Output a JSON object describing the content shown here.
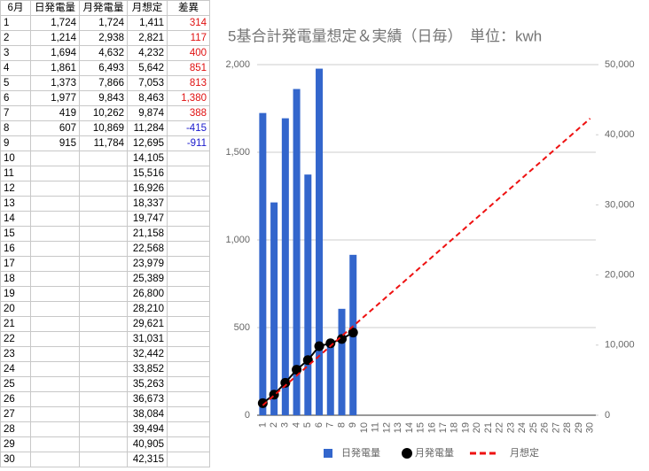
{
  "table": {
    "header": [
      "6月",
      "日発電量",
      "月発電量",
      "月想定",
      "差異"
    ],
    "rows": [
      [
        "1",
        "1,724",
        "1,724",
        "1,411",
        "314"
      ],
      [
        "2",
        "1,214",
        "2,938",
        "2,821",
        "117"
      ],
      [
        "3",
        "1,694",
        "4,632",
        "4,232",
        "400"
      ],
      [
        "4",
        "1,861",
        "6,493",
        "5,642",
        "851"
      ],
      [
        "5",
        "1,373",
        "7,866",
        "7,053",
        "813"
      ],
      [
        "6",
        "1,977",
        "9,843",
        "8,463",
        "1,380"
      ],
      [
        "7",
        "419",
        "10,262",
        "9,874",
        "388"
      ],
      [
        "8",
        "607",
        "10,869",
        "11,284",
        "-415"
      ],
      [
        "9",
        "915",
        "11,784",
        "12,695",
        "-911"
      ],
      [
        "10",
        null,
        null,
        "14,105",
        null
      ],
      [
        "11",
        null,
        null,
        "15,516",
        null
      ],
      [
        "12",
        null,
        null,
        "16,926",
        null
      ],
      [
        "13",
        null,
        null,
        "18,337",
        null
      ],
      [
        "14",
        null,
        null,
        "19,747",
        null
      ],
      [
        "15",
        null,
        null,
        "21,158",
        null
      ],
      [
        "16",
        null,
        null,
        "22,568",
        null
      ],
      [
        "17",
        null,
        null,
        "23,979",
        null
      ],
      [
        "18",
        null,
        null,
        "25,389",
        null
      ],
      [
        "19",
        null,
        null,
        "26,800",
        null
      ],
      [
        "20",
        null,
        null,
        "28,210",
        null
      ],
      [
        "21",
        null,
        null,
        "29,621",
        null
      ],
      [
        "22",
        null,
        null,
        "31,031",
        null
      ],
      [
        "23",
        null,
        null,
        "32,442",
        null
      ],
      [
        "24",
        null,
        null,
        "33,852",
        null
      ],
      [
        "25",
        null,
        null,
        "35,263",
        null
      ],
      [
        "26",
        null,
        null,
        "36,673",
        null
      ],
      [
        "27",
        null,
        null,
        "38,084",
        null
      ],
      [
        "28",
        null,
        null,
        "39,494",
        null
      ],
      [
        "29",
        null,
        null,
        "40,905",
        null
      ],
      [
        "30",
        null,
        null,
        "42,315",
        null
      ]
    ]
  },
  "chart_data": {
    "type": "bar_line",
    "title": "5基合計発電量想定＆実績（日毎）　単位：kwh",
    "categories": [
      "1",
      "2",
      "3",
      "4",
      "5",
      "6",
      "7",
      "8",
      "9",
      "10",
      "11",
      "12",
      "13",
      "14",
      "15",
      "16",
      "17",
      "18",
      "19",
      "20",
      "21",
      "22",
      "23",
      "24",
      "25",
      "26",
      "27",
      "28",
      "29",
      "30"
    ],
    "series": [
      {
        "name": "日発電量",
        "color": "#3366cc",
        "kind": "bar",
        "axis": "y",
        "values": [
          1724,
          1214,
          1694,
          1861,
          1373,
          1977,
          419,
          607,
          915,
          null,
          null,
          null,
          null,
          null,
          null,
          null,
          null,
          null,
          null,
          null,
          null,
          null,
          null,
          null,
          null,
          null,
          null,
          null,
          null,
          null
        ]
      },
      {
        "name": "月発電量",
        "color": "#000000",
        "kind": "line",
        "markers": true,
        "axis": "y2",
        "values": [
          1724,
          2938,
          4632,
          6493,
          7866,
          9843,
          10262,
          10869,
          11784,
          null,
          null,
          null,
          null,
          null,
          null,
          null,
          null,
          null,
          null,
          null,
          null,
          null,
          null,
          null,
          null,
          null,
          null,
          null,
          null,
          null
        ]
      },
      {
        "name": "月想定",
        "color": "#ee1111",
        "kind": "line",
        "dashed": true,
        "axis": "y2",
        "values": [
          1411,
          2821,
          4232,
          5642,
          7053,
          8463,
          9874,
          11284,
          12695,
          14105,
          15516,
          16926,
          18337,
          19747,
          21158,
          22568,
          23979,
          25389,
          26800,
          28210,
          29621,
          31031,
          32442,
          33852,
          35263,
          36673,
          38084,
          39494,
          40905,
          42315
        ]
      }
    ],
    "ylim": [
      0,
      2000
    ],
    "yticks": [
      0,
      500,
      {
        "value": 1000,
        "label": "1,000"
      },
      {
        "value": 1500,
        "label": "1,500"
      },
      {
        "value": 2000,
        "label": "2,000"
      }
    ],
    "y2lim": [
      0,
      50000
    ],
    "y2ticks": [
      0,
      {
        "value": 10000,
        "label": "10,000"
      },
      {
        "value": 20000,
        "label": "20,000"
      },
      {
        "value": 30000,
        "label": "30,000"
      },
      {
        "value": 40000,
        "label": "40,000"
      },
      {
        "value": 50000,
        "label": "50,000"
      }
    ],
    "grid": true,
    "legend": "bottom"
  }
}
